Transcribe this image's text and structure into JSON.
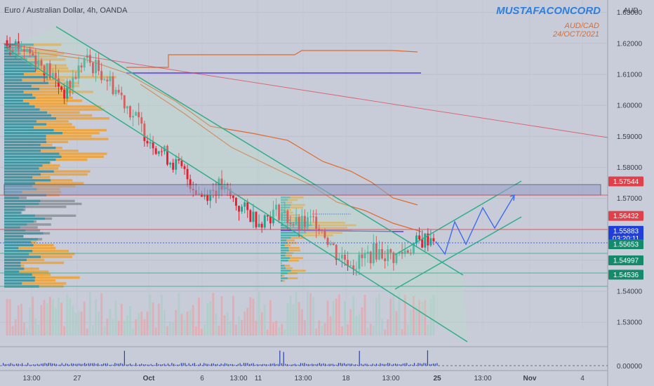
{
  "header": {
    "symbol_title": "Euro / Australian Dollar, 4h, OANDA"
  },
  "watermark": {
    "author": "MUSTAFACONCORD",
    "pair": "AUD/CAD",
    "date": "24/OCT/2021"
  },
  "colors": {
    "background": "#c8ccd8",
    "up_candle": "#21a68f",
    "down_candle": "#e5202a",
    "channel": "#2fae8a",
    "projection": "#3d6cf0",
    "orange_line": "#e06a2a",
    "purple_line": "#5b3fd8",
    "zone_fill": "#9aa0c8",
    "red_level": "#e0404a"
  },
  "price_axis": {
    "currency": "AUD",
    "ticks": [
      "1.63000",
      "1.62000",
      "1.61000",
      "1.60000",
      "1.59000",
      "1.58000",
      "1.57000",
      "1.56000",
      "1.55000",
      "1.54000",
      "1.53000"
    ],
    "volume_tick": "0.00000"
  },
  "price_badges": [
    {
      "id": "level-1",
      "label": "1.57544",
      "kind": "red"
    },
    {
      "id": "level-2",
      "label": "1.56432",
      "kind": "red"
    },
    {
      "id": "last-price",
      "label": "1.55883",
      "countdown": "03:20:11",
      "kind": "blue"
    },
    {
      "id": "level-3",
      "label": "1.55653",
      "kind": "green"
    },
    {
      "id": "level-4",
      "label": "1.54997",
      "kind": "green"
    },
    {
      "id": "level-5",
      "label": "1.54536",
      "kind": "green"
    }
  ],
  "time_axis": {
    "labels": [
      "13:00",
      "27",
      "Oct",
      "6",
      "13:00",
      "11",
      "13:00",
      "18",
      "13:00",
      "25",
      "13:00",
      "Nov",
      "4"
    ]
  },
  "chart_data": {
    "type": "candlestick",
    "title": "Euro / Australian Dollar, 4h, OANDA",
    "ylim": [
      1.528,
      1.634
    ],
    "price_levels": [
      1.57544,
      1.56432,
      1.55883,
      1.55653,
      1.54997,
      1.54536
    ],
    "ohlc_path": [
      1.621,
      1.618,
      1.612,
      1.604,
      1.615,
      1.61,
      1.602,
      1.592,
      1.585,
      1.579,
      1.571,
      1.574,
      1.567,
      1.563,
      1.566,
      1.561,
      1.563,
      1.552,
      1.549,
      1.553,
      1.551,
      1.555,
      1.558
    ]
  }
}
